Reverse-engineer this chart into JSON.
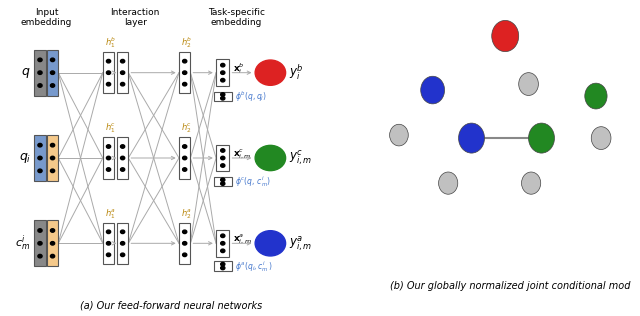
{
  "title_a": "(a) Our feed-forward neural networks",
  "title_b": "(b) Our globally normalized joint conditional mod",
  "bg_color": "#ffffff",
  "header_input": "Input\nembedding",
  "header_interaction": "Interaction\nlayer",
  "header_task": "Task-specific\nembedding",
  "label_q": "$q$",
  "label_qi": "$q_i$",
  "label_cm": "$c_m^i$",
  "label_yb": "$y_i^b$",
  "label_yc": "$y_{i,m}^c$",
  "label_ya": "$y_{i,m}^a$",
  "label_h1b": "$h_1^b$",
  "label_h1c": "$h_1^c$",
  "label_h1a": "$h_1^a$",
  "label_h2b": "$h_2^b$",
  "label_h2c": "$h_2^c$",
  "label_h2a": "$h_2^a$",
  "label_xb": "$\\mathbf{x}_i^b$",
  "label_xc": "$\\mathbf{x}_{i,m}^c$",
  "label_xa": "$\\mathbf{x}_{i,\\,m}^a$",
  "label_phib": "$\\phi^b(q,q_i)$",
  "label_phic": "$\\phi^c(q,\\,c_m^i)$",
  "label_phia": "$\\phi^a(q_i,c_m^i\\,)$",
  "color_gray_block": "#888888",
  "color_blue_block": "#7799cc",
  "color_orange_block": "#f5c98a",
  "color_red": "#dd2222",
  "color_green": "#228822",
  "color_blue_node": "#2233cc",
  "color_arrow": "#aaaaaa",
  "color_h_label": "#b8860b",
  "color_phi_label": "#4477cc",
  "color_node_gray": "#c0c0c0",
  "color_edge": "#888888"
}
